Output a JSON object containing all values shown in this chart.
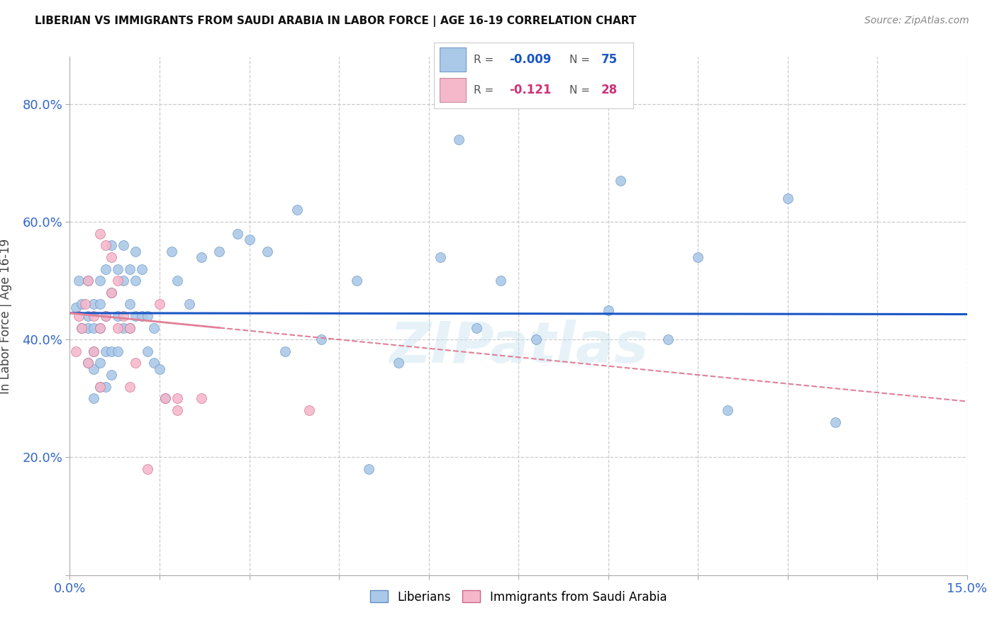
{
  "title": "LIBERIAN VS IMMIGRANTS FROM SAUDI ARABIA IN LABOR FORCE | AGE 16-19 CORRELATION CHART",
  "source": "Source: ZipAtlas.com",
  "ylabel": "In Labor Force | Age 16-19",
  "xlim": [
    0.0,
    0.15
  ],
  "ylim": [
    0.0,
    0.88
  ],
  "xticks": [
    0.0,
    0.015,
    0.03,
    0.045,
    0.06,
    0.075,
    0.09,
    0.105,
    0.12,
    0.135,
    0.15
  ],
  "xtick_labels": [
    "0.0%",
    "",
    "",
    "",
    "",
    "",
    "",
    "",
    "",
    "",
    "15.0%"
  ],
  "ytick_positions": [
    0.0,
    0.2,
    0.4,
    0.6,
    0.8
  ],
  "ytick_labels": [
    "",
    "20.0%",
    "40.0%",
    "60.0%",
    "80.0%"
  ],
  "blue_color": "#aac8e8",
  "pink_color": "#f5b8cb",
  "blue_line_color": "#1a56c4",
  "pink_line_color": "#e08098",
  "background_color": "#ffffff",
  "grid_color": "#cccccc",
  "watermark": "ZIPatlas",
  "blue_trendline_y0": 0.445,
  "blue_trendline_y1": 0.443,
  "pink_trendline_y0": 0.445,
  "pink_trendline_y1": 0.295,
  "blue_scatter_x": [
    0.001,
    0.0015,
    0.002,
    0.002,
    0.003,
    0.003,
    0.003,
    0.003,
    0.004,
    0.004,
    0.004,
    0.004,
    0.004,
    0.005,
    0.005,
    0.005,
    0.005,
    0.005,
    0.006,
    0.006,
    0.006,
    0.006,
    0.007,
    0.007,
    0.007,
    0.007,
    0.008,
    0.008,
    0.008,
    0.009,
    0.009,
    0.009,
    0.01,
    0.01,
    0.01,
    0.011,
    0.011,
    0.011,
    0.012,
    0.012,
    0.013,
    0.013,
    0.014,
    0.014,
    0.015,
    0.016,
    0.017,
    0.018,
    0.02,
    0.022,
    0.025,
    0.028,
    0.03,
    0.033,
    0.036,
    0.038,
    0.042,
    0.048,
    0.05,
    0.055,
    0.062,
    0.065,
    0.068,
    0.072,
    0.078,
    0.09,
    0.092,
    0.1,
    0.105,
    0.11,
    0.12,
    0.128
  ],
  "blue_scatter_y": [
    0.455,
    0.5,
    0.42,
    0.46,
    0.36,
    0.42,
    0.44,
    0.5,
    0.3,
    0.35,
    0.38,
    0.42,
    0.46,
    0.32,
    0.36,
    0.42,
    0.46,
    0.5,
    0.32,
    0.38,
    0.44,
    0.52,
    0.34,
    0.38,
    0.48,
    0.56,
    0.38,
    0.44,
    0.52,
    0.42,
    0.5,
    0.56,
    0.42,
    0.46,
    0.52,
    0.44,
    0.5,
    0.55,
    0.44,
    0.52,
    0.38,
    0.44,
    0.36,
    0.42,
    0.35,
    0.3,
    0.55,
    0.5,
    0.46,
    0.54,
    0.55,
    0.58,
    0.57,
    0.55,
    0.38,
    0.62,
    0.4,
    0.5,
    0.18,
    0.36,
    0.54,
    0.74,
    0.42,
    0.5,
    0.4,
    0.45,
    0.67,
    0.4,
    0.54,
    0.28,
    0.64,
    0.26
  ],
  "pink_scatter_x": [
    0.001,
    0.0015,
    0.002,
    0.0025,
    0.003,
    0.003,
    0.004,
    0.004,
    0.005,
    0.005,
    0.005,
    0.006,
    0.006,
    0.007,
    0.007,
    0.008,
    0.008,
    0.009,
    0.01,
    0.01,
    0.011,
    0.013,
    0.015,
    0.016,
    0.018,
    0.018,
    0.022,
    0.04
  ],
  "pink_scatter_y": [
    0.38,
    0.44,
    0.42,
    0.46,
    0.36,
    0.5,
    0.38,
    0.44,
    0.32,
    0.42,
    0.58,
    0.44,
    0.56,
    0.48,
    0.54,
    0.42,
    0.5,
    0.44,
    0.32,
    0.42,
    0.36,
    0.18,
    0.46,
    0.3,
    0.28,
    0.3,
    0.3,
    0.28
  ]
}
